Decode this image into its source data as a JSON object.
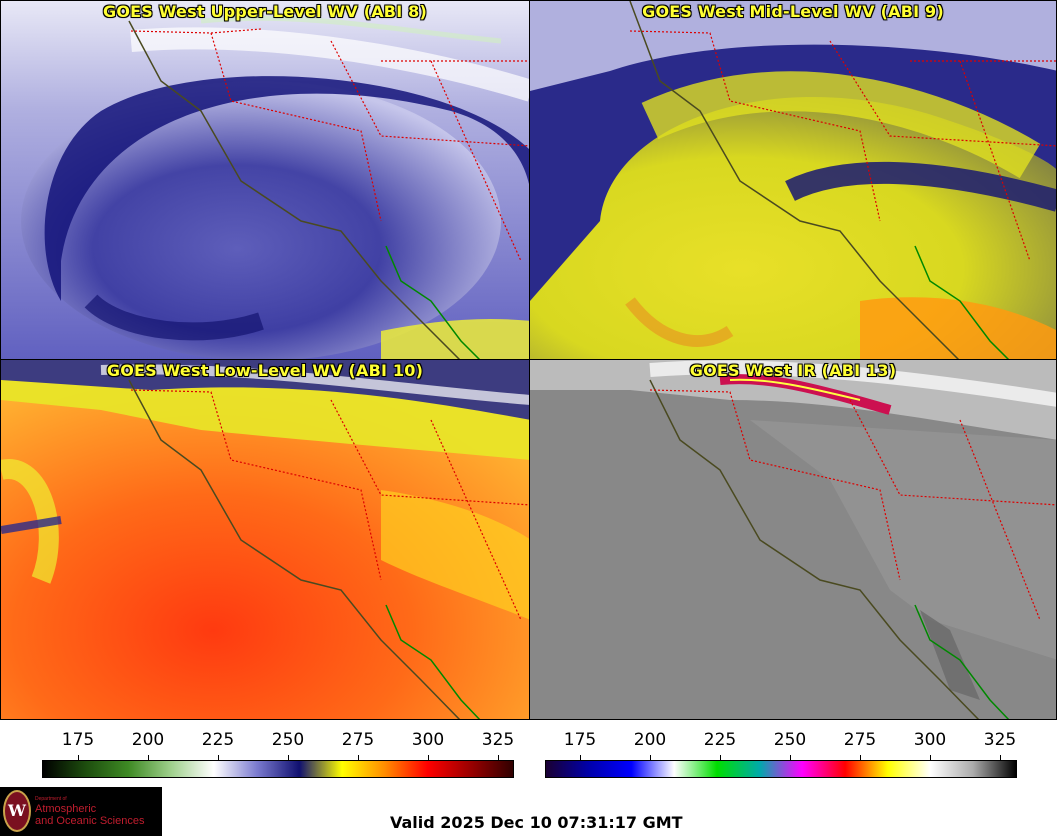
{
  "panels": [
    {
      "title": "GOES West Upper-Level WV (ABI 8)"
    },
    {
      "title": "GOES West Mid-Level WV (ABI 9)"
    },
    {
      "title": "GOES West Low-Level WV (ABI 10)"
    },
    {
      "title": "GOES West IR (ABI 13)"
    }
  ],
  "colorbar_wv": {
    "tick_labels": [
      "175",
      "200",
      "225",
      "250",
      "275",
      "300",
      "325"
    ],
    "colors": [
      "#000000",
      "#1d4d0e",
      "#3e8a24",
      "#9fd08c",
      "#ffffff",
      "#7c7cd0",
      "#101070",
      "#ffff00",
      "#ff8c00",
      "#ff0000",
      "#9b0000",
      "#300000"
    ]
  },
  "colorbar_ir": {
    "tick_labels": [
      "175",
      "200",
      "225",
      "250",
      "275",
      "300",
      "325"
    ],
    "colors": [
      "#1a0033",
      "#0000aa",
      "#0000ff",
      "#ffffff",
      "#00dd00",
      "#00aaaa",
      "#ff00ff",
      "#ff0000",
      "#ffff00",
      "#ffffff",
      "#aaaaaa",
      "#000000"
    ]
  },
  "logo": {
    "small_text": "Department of",
    "line1": "Atmospheric",
    "line2": "and Oceanic Sciences",
    "crest_letter": "W"
  },
  "valid_time": "Valid 2025 Dec 10 07:31:17 GMT"
}
